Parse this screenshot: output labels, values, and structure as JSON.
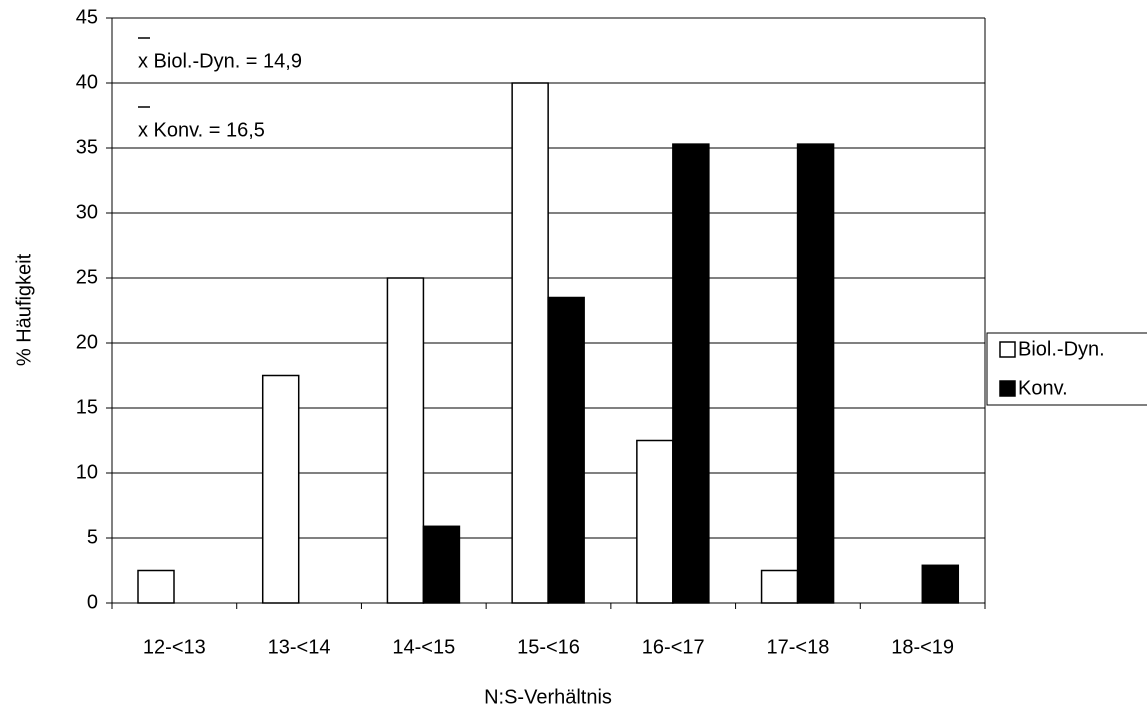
{
  "chart_data": {
    "type": "bar",
    "categories": [
      "12-<13",
      "13-<14",
      "14-<15",
      "15-<16",
      "16-<17",
      "17-<18",
      "18-<19"
    ],
    "series": [
      {
        "name": "Biol.-Dyn.",
        "color": "#ffffff",
        "values": [
          2.5,
          17.5,
          25,
          40,
          12.5,
          2.5,
          0
        ]
      },
      {
        "name": "Konv.",
        "color": "#000000",
        "values": [
          0,
          0,
          5.9,
          23.5,
          35.3,
          35.3,
          2.9
        ]
      }
    ],
    "x_label": "N:S-Verhältnis",
    "y_label": "% Häufigkeit",
    "annotations": [
      "x Biol.-Dyn. = 14,9",
      "x Konv. = 16,5"
    ],
    "ylim": [
      0,
      45
    ],
    "yticks": [
      0,
      5,
      10,
      15,
      20,
      25,
      30,
      35,
      40,
      45
    ],
    "grid": true,
    "legend": "right"
  }
}
